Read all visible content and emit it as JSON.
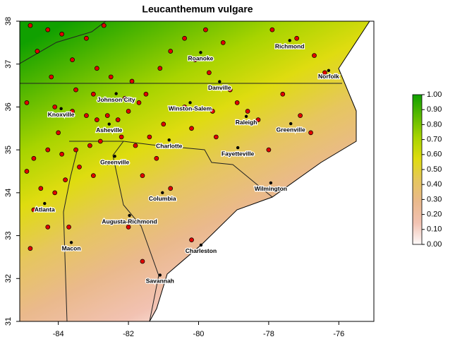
{
  "map": {
    "title": "Leucanthemum vulgare",
    "xlim": [
      -85.1,
      -75
    ],
    "ylim": [
      31,
      38
    ],
    "xticks": [
      -84,
      -82,
      -80,
      -78,
      -76
    ],
    "yticks": [
      31,
      32,
      33,
      34,
      35,
      36,
      37,
      38
    ],
    "colorbar": {
      "lim": [
        0,
        1
      ],
      "colors": [
        "#fdfafa",
        "#f2c2b2",
        "#eab98c",
        "#e6c65e",
        "#dfdc10",
        "#a8d400",
        "#5cba00",
        "#10a000"
      ],
      "ticks": [
        {
          "value": 0,
          "label": "0.00"
        },
        {
          "value": 0.1,
          "label": "0.10"
        },
        {
          "value": 0.2,
          "label": "0.20"
        },
        {
          "value": 0.3,
          "label": "0.30"
        },
        {
          "value": 0.4,
          "label": "0.40"
        },
        {
          "value": 0.5,
          "label": "0.50"
        },
        {
          "value": 0.6,
          "label": "0.60"
        },
        {
          "value": 0.7,
          "label": "0.70"
        },
        {
          "value": 0.8,
          "label": "0.80"
        },
        {
          "value": 0.9,
          "label": "0.90"
        },
        {
          "value": 1,
          "label": "1.00"
        }
      ]
    },
    "cities": {
      "names": [
        "Richmond",
        "Roanoke",
        "Norfolk",
        "Danville",
        "Johnson City",
        "Winston-Salem",
        "Knoxville",
        "Raleigh",
        "Greenville",
        "Asheville",
        "Charlotte",
        "Fayetteville",
        "Greenville",
        "Wilmington",
        "Columbia",
        "Atlanta",
        "Augusta-Richmond",
        "Macon",
        "Charleston",
        "Savannah"
      ],
      "lon": [
        -77.4,
        -79.94,
        -76.29,
        -79.4,
        -82.35,
        -80.24,
        -83.92,
        -78.64,
        -77.37,
        -82.55,
        -80.84,
        -78.88,
        -82.39,
        -77.94,
        -81.03,
        -84.39,
        -81.97,
        -83.63,
        -79.93,
        -81.1
      ],
      "lat": [
        37.55,
        37.27,
        36.85,
        36.59,
        36.31,
        36.1,
        35.96,
        35.78,
        35.61,
        35.6,
        35.23,
        35.05,
        34.85,
        34.23,
        34.0,
        33.75,
        33.47,
        32.84,
        32.78,
        32.08
      ]
    },
    "occurrences": {
      "color": "#e00000",
      "lon": [
        -84.8,
        -84.3,
        -83.9,
        -83.2,
        -82.7,
        -84.6,
        -83.6,
        -82.9,
        -84.2,
        -83.5,
        -84.9,
        -84.1,
        -83.6,
        -83.2,
        -82.9,
        -82.6,
        -82.3,
        -82.0,
        -81.7,
        -81.5,
        -82.1,
        -81.9,
        -81.1,
        -80.8,
        -80.4,
        -79.8,
        -79.3,
        -80.1,
        -79.7,
        -79.1,
        -78.9,
        -78.6,
        -78.3,
        -79.6,
        -80.4,
        -81.0,
        -81.4,
        -81.8,
        -82.2,
        -82.8,
        -83.1,
        -83.5,
        -83.9,
        -84.3,
        -84.7,
        -84.9,
        -84.5,
        -84.1,
        -83.8,
        -83.4,
        -83.0,
        -82.6,
        -84.7,
        -84.3,
        -84.8,
        -83.7,
        -82.0,
        -81.6,
        -80.2,
        -80.8,
        -81.6,
        -77.9,
        -77.2,
        -76.7,
        -76.4,
        -77.6,
        -77.1,
        -76.8,
        -78.0,
        -79.5,
        -80.2,
        -81.2,
        -84.0,
        -82.5,
        -83.0
      ],
      "lat": [
        37.9,
        37.8,
        37.7,
        37.6,
        37.9,
        37.3,
        37.1,
        36.9,
        36.7,
        36.4,
        36.1,
        36.0,
        35.9,
        35.8,
        35.7,
        35.8,
        35.7,
        35.9,
        36.1,
        36.3,
        36.2,
        36.6,
        36.9,
        37.3,
        37.6,
        37.8,
        37.5,
        37.1,
        36.8,
        36.4,
        36.1,
        35.9,
        35.7,
        35.9,
        36.0,
        35.6,
        35.3,
        35.1,
        35.3,
        35.2,
        35.1,
        35.0,
        34.9,
        35.0,
        34.8,
        34.5,
        34.1,
        34.0,
        34.3,
        34.6,
        34.4,
        34.7,
        33.6,
        33.2,
        32.7,
        33.2,
        33.2,
        32.4,
        32.9,
        34.1,
        34.4,
        37.8,
        37.6,
        37.2,
        36.8,
        36.3,
        35.8,
        35.4,
        35.0,
        35.3,
        35.5,
        34.8,
        35.4,
        36.7,
        36.3
      ]
    }
  }
}
